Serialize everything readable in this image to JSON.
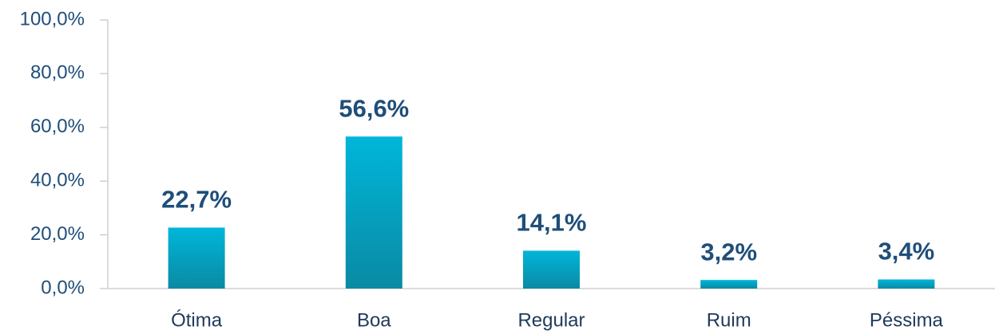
{
  "chart_data": {
    "type": "bar",
    "categories": [
      "Ótima",
      "Boa",
      "Regular",
      "Ruim",
      "Péssima"
    ],
    "values": [
      22.7,
      56.6,
      14.1,
      3.2,
      3.4
    ],
    "value_labels": [
      "22,7%",
      "56,6%",
      "14,1%",
      "3,2%",
      "3,4%"
    ],
    "color": "#00b6da",
    "ylim": [
      0,
      100
    ],
    "yticks": [
      {
        "value": 0,
        "label": "0,0%"
      },
      {
        "value": 20,
        "label": "20,0%"
      },
      {
        "value": 40,
        "label": "40,0%"
      },
      {
        "value": 60,
        "label": "60,0%"
      },
      {
        "value": 80,
        "label": "80,0%"
      },
      {
        "value": 100,
        "label": "100,0%"
      }
    ],
    "grid": false
  }
}
